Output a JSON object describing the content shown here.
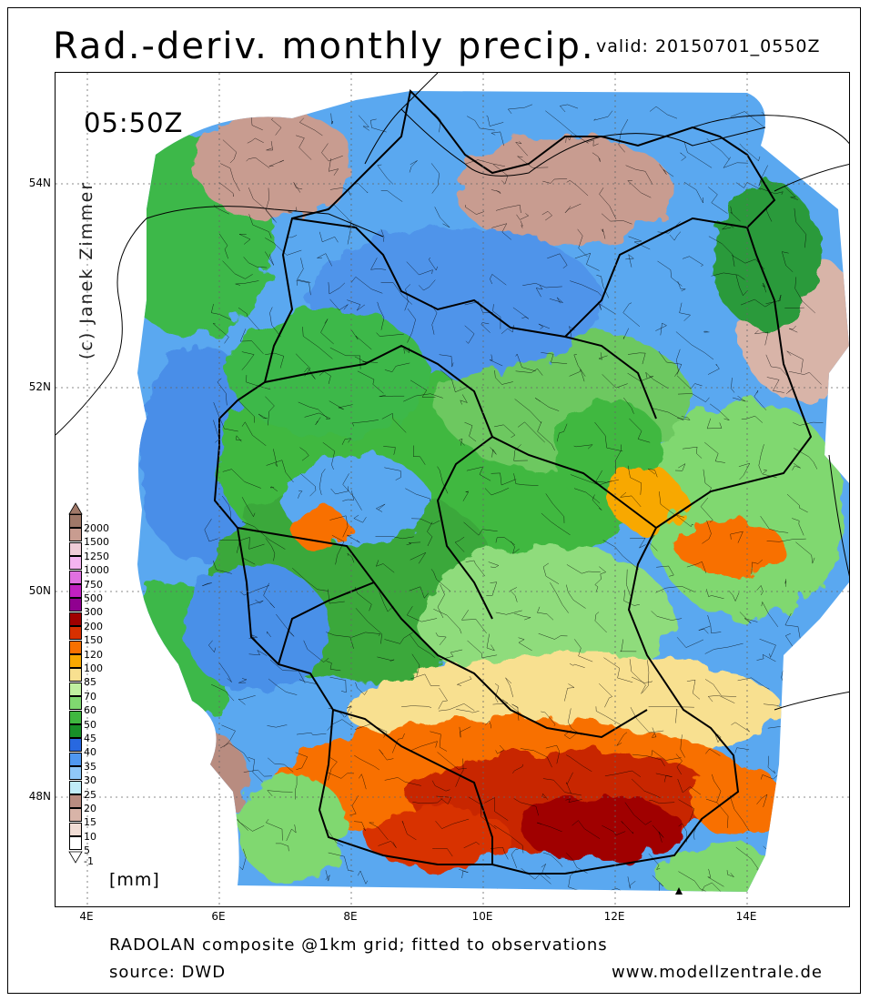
{
  "title": "Rad.-deriv. monthly precip.",
  "valid": "valid: 20150701_0550Z",
  "time_label": "05:50Z",
  "credit": "(c) Janek Zimmer",
  "lat_labels": [
    "54N",
    "52N",
    "50N",
    "48N"
  ],
  "lon_labels": [
    "4E",
    "6E",
    "8E",
    "10E",
    "12E",
    "14E"
  ],
  "legend": {
    "unit": "[mm]",
    "levels": [
      {
        "label": "2000",
        "color": "#a07868"
      },
      {
        "label": "1500",
        "color": "#c89c90"
      },
      {
        "label": "1250",
        "color": "#f0ccd8"
      },
      {
        "label": "1000",
        "color": "#f4b4f0"
      },
      {
        "label": "750",
        "color": "#e070e0"
      },
      {
        "label": "500",
        "color": "#c020c0"
      },
      {
        "label": "300",
        "color": "#900090"
      },
      {
        "label": "200",
        "color": "#a00000"
      },
      {
        "label": "150",
        "color": "#d83000"
      },
      {
        "label": "120",
        "color": "#f87000"
      },
      {
        "label": "100",
        "color": "#f8a800"
      },
      {
        "label": "85",
        "color": "#f8e090"
      },
      {
        "label": "70",
        "color": "#c0f0a0"
      },
      {
        "label": "60",
        "color": "#80d870"
      },
      {
        "label": "50",
        "color": "#40b840"
      },
      {
        "label": "45",
        "color": "#189028"
      },
      {
        "label": "40",
        "color": "#2868e0"
      },
      {
        "label": "35",
        "color": "#5098f0"
      },
      {
        "label": "30",
        "color": "#90c8f8"
      },
      {
        "label": "25",
        "color": "#c0ecf8"
      },
      {
        "label": "20",
        "color": "#b88c80"
      },
      {
        "label": "15",
        "color": "#d8b4a8"
      },
      {
        "label": "10",
        "color": "#f0dcd4"
      },
      {
        "label": "5",
        "color": "#ffffff"
      },
      {
        "label": "-1",
        "color": "#ffffff"
      }
    ]
  },
  "footer": {
    "line1": "RADOLAN composite @1km grid; fitted to observations",
    "line2": "source: DWD",
    "website": "www.modellzentrale.de"
  }
}
